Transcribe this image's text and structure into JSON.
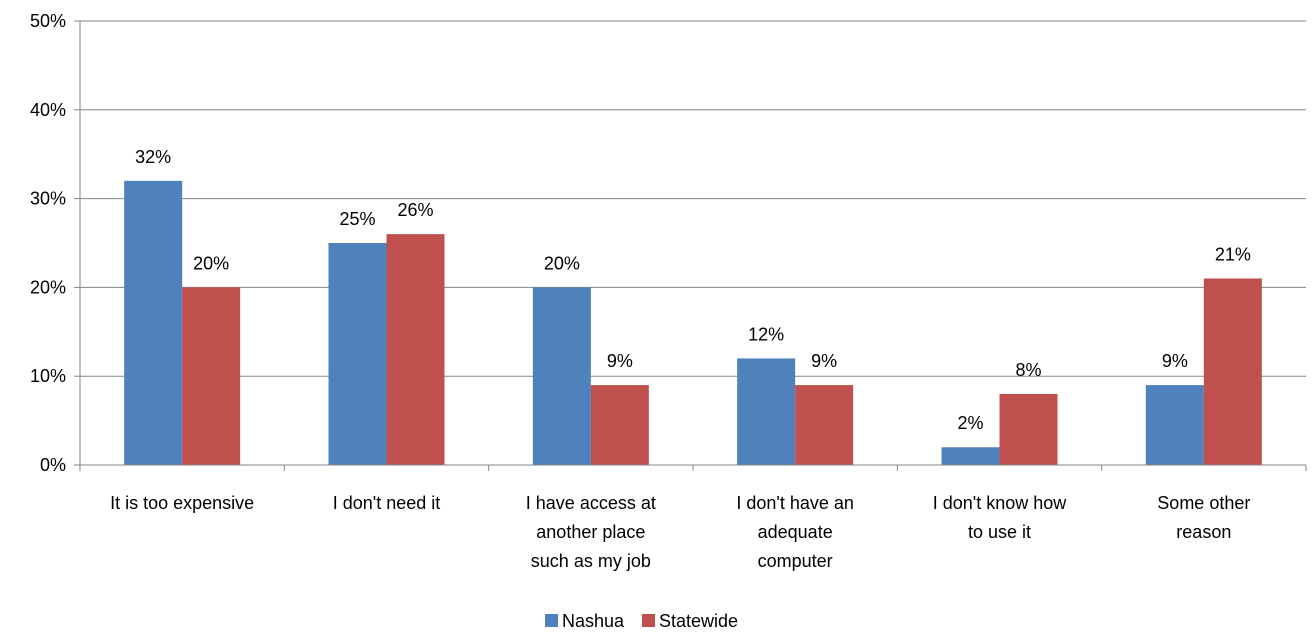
{
  "chart_data": {
    "type": "bar",
    "categories": [
      [
        "It is too expensive"
      ],
      [
        "I don't need it"
      ],
      [
        "I have access at",
        "another place",
        "such as my job"
      ],
      [
        "I don't have an",
        "adequate",
        "computer"
      ],
      [
        "I don't know how",
        "to use it"
      ],
      [
        "Some other",
        "reason"
      ]
    ],
    "series": [
      {
        "name": "Nashua",
        "color": "#4F81BD",
        "values": [
          32,
          25,
          20,
          12,
          2,
          9
        ],
        "labels": [
          "32%",
          "25%",
          "20%",
          "12%",
          "2%",
          "9%"
        ]
      },
      {
        "name": "Statewide",
        "color": "#C0504D",
        "values": [
          20,
          26,
          9,
          9,
          8,
          21
        ],
        "labels": [
          "20%",
          "26%",
          "9%",
          "9%",
          "8%",
          "21%"
        ]
      }
    ],
    "ylim": [
      0,
      50
    ],
    "yticks": [
      0,
      10,
      20,
      30,
      40,
      50
    ],
    "ytick_labels": [
      "0%",
      "10%",
      "20%",
      "30%",
      "40%",
      "50%"
    ],
    "grid": true,
    "legend": "bottom"
  }
}
